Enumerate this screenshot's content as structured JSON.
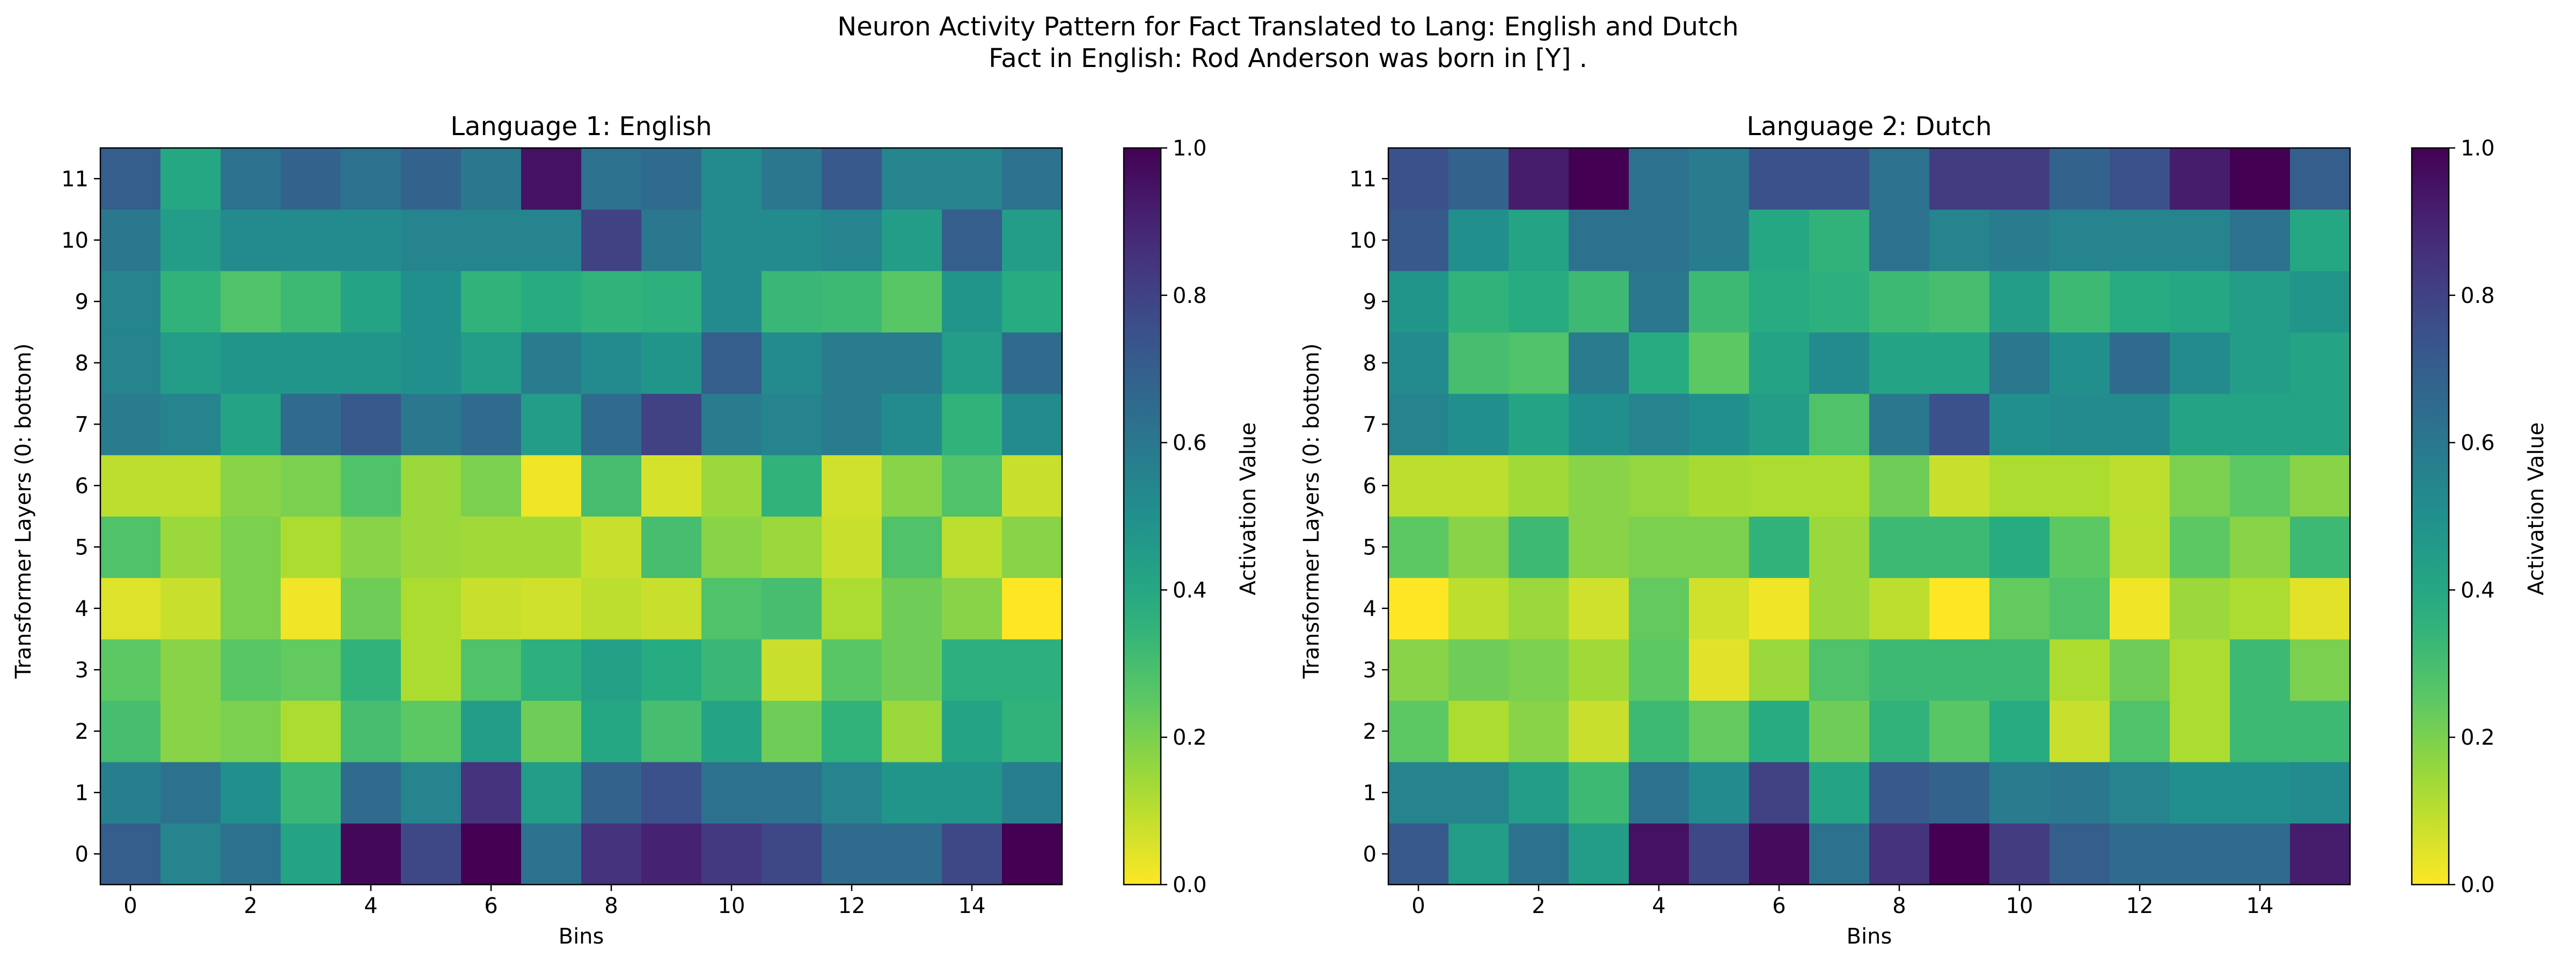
{
  "figure": {
    "title_line1": "Neuron Activity Pattern for Fact Translated to Lang: English and Dutch",
    "title_line2": "Fact in English: Rod Anderson was born in [Y] ."
  },
  "chart_data": [
    {
      "type": "heatmap",
      "title": "Language 1: English",
      "xlabel": "Bins",
      "ylabel": "Transformer Layers (0: bottom)",
      "x_ticks": [
        "0",
        "2",
        "4",
        "6",
        "8",
        "10",
        "12",
        "14"
      ],
      "y_ticks": [
        "0",
        "1",
        "2",
        "3",
        "4",
        "5",
        "6",
        "7",
        "8",
        "9",
        "10",
        "11"
      ],
      "colorbar": {
        "label": "Activation Value",
        "ticks": [
          "0.0",
          "0.2",
          "0.4",
          "0.6",
          "0.8",
          "1.0"
        ],
        "range": [
          0,
          1
        ],
        "colormap": "viridis_r"
      },
      "rows_layer0_to_11": [
        [
          0.7,
          0.55,
          0.62,
          0.42,
          0.98,
          0.78,
          1.0,
          0.62,
          0.85,
          0.9,
          0.83,
          0.78,
          0.65,
          0.65,
          0.78,
          1.0
        ],
        [
          0.57,
          0.62,
          0.5,
          0.33,
          0.65,
          0.55,
          0.85,
          0.45,
          0.68,
          0.75,
          0.62,
          0.62,
          0.55,
          0.48,
          0.48,
          0.57
        ],
        [
          0.3,
          0.18,
          0.2,
          0.12,
          0.3,
          0.25,
          0.45,
          0.22,
          0.4,
          0.3,
          0.42,
          0.22,
          0.35,
          0.15,
          0.42,
          0.35
        ],
        [
          0.25,
          0.18,
          0.26,
          0.24,
          0.35,
          0.12,
          0.28,
          0.36,
          0.43,
          0.38,
          0.33,
          0.08,
          0.26,
          0.22,
          0.36,
          0.36
        ],
        [
          0.05,
          0.08,
          0.2,
          0.02,
          0.22,
          0.12,
          0.08,
          0.07,
          0.1,
          0.08,
          0.28,
          0.3,
          0.12,
          0.22,
          0.18,
          0.0
        ],
        [
          0.28,
          0.15,
          0.2,
          0.12,
          0.18,
          0.15,
          0.14,
          0.14,
          0.08,
          0.3,
          0.18,
          0.15,
          0.08,
          0.28,
          0.1,
          0.18
        ],
        [
          0.1,
          0.1,
          0.18,
          0.2,
          0.28,
          0.15,
          0.2,
          0.02,
          0.3,
          0.06,
          0.15,
          0.35,
          0.07,
          0.18,
          0.28,
          0.08
        ],
        [
          0.58,
          0.55,
          0.42,
          0.65,
          0.72,
          0.6,
          0.65,
          0.45,
          0.65,
          0.8,
          0.58,
          0.55,
          0.58,
          0.52,
          0.35,
          0.52
        ],
        [
          0.55,
          0.45,
          0.48,
          0.48,
          0.48,
          0.5,
          0.45,
          0.58,
          0.52,
          0.48,
          0.7,
          0.52,
          0.58,
          0.58,
          0.45,
          0.65
        ],
        [
          0.55,
          0.35,
          0.28,
          0.32,
          0.42,
          0.5,
          0.35,
          0.38,
          0.35,
          0.36,
          0.52,
          0.33,
          0.32,
          0.26,
          0.48,
          0.38
        ],
        [
          0.6,
          0.45,
          0.52,
          0.52,
          0.52,
          0.55,
          0.55,
          0.55,
          0.8,
          0.6,
          0.52,
          0.52,
          0.55,
          0.45,
          0.7,
          0.45
        ],
        [
          0.7,
          0.4,
          0.62,
          0.68,
          0.62,
          0.68,
          0.6,
          0.95,
          0.62,
          0.65,
          0.52,
          0.6,
          0.72,
          0.55,
          0.55,
          0.62
        ]
      ]
    },
    {
      "type": "heatmap",
      "title": "Language 2: Dutch",
      "xlabel": "Bins",
      "ylabel": "Transformer Layers (0: bottom)",
      "x_ticks": [
        "0",
        "2",
        "4",
        "6",
        "8",
        "10",
        "12",
        "14"
      ],
      "y_ticks": [
        "0",
        "1",
        "2",
        "3",
        "4",
        "5",
        "6",
        "7",
        "8",
        "9",
        "10",
        "11"
      ],
      "colorbar": {
        "label": "Activation Value",
        "ticks": [
          "0.0",
          "0.2",
          "0.4",
          "0.6",
          "0.8",
          "1.0"
        ],
        "range": [
          0,
          1
        ],
        "colormap": "viridis_r"
      },
      "rows_layer0_to_11": [
        [
          0.72,
          0.45,
          0.62,
          0.45,
          0.95,
          0.78,
          0.97,
          0.62,
          0.85,
          1.0,
          0.82,
          0.7,
          0.65,
          0.65,
          0.65,
          0.92
        ],
        [
          0.55,
          0.55,
          0.45,
          0.32,
          0.62,
          0.52,
          0.8,
          0.42,
          0.72,
          0.68,
          0.58,
          0.6,
          0.55,
          0.5,
          0.5,
          0.52
        ],
        [
          0.25,
          0.12,
          0.18,
          0.08,
          0.32,
          0.24,
          0.38,
          0.22,
          0.35,
          0.26,
          0.38,
          0.08,
          0.28,
          0.12,
          0.32,
          0.32
        ],
        [
          0.18,
          0.22,
          0.2,
          0.14,
          0.25,
          0.04,
          0.15,
          0.28,
          0.32,
          0.32,
          0.32,
          0.12,
          0.22,
          0.12,
          0.32,
          0.2
        ],
        [
          0.0,
          0.1,
          0.15,
          0.07,
          0.24,
          0.07,
          0.02,
          0.15,
          0.1,
          0.0,
          0.24,
          0.28,
          0.02,
          0.15,
          0.12,
          0.04
        ],
        [
          0.25,
          0.18,
          0.32,
          0.18,
          0.2,
          0.2,
          0.35,
          0.15,
          0.32,
          0.32,
          0.38,
          0.25,
          0.1,
          0.25,
          0.18,
          0.32
        ],
        [
          0.1,
          0.1,
          0.14,
          0.18,
          0.16,
          0.13,
          0.12,
          0.12,
          0.22,
          0.08,
          0.12,
          0.12,
          0.1,
          0.2,
          0.25,
          0.18
        ],
        [
          0.55,
          0.5,
          0.42,
          0.5,
          0.55,
          0.5,
          0.45,
          0.28,
          0.6,
          0.75,
          0.5,
          0.52,
          0.52,
          0.42,
          0.42,
          0.42
        ],
        [
          0.52,
          0.3,
          0.28,
          0.58,
          0.38,
          0.25,
          0.42,
          0.52,
          0.42,
          0.42,
          0.6,
          0.5,
          0.65,
          0.52,
          0.45,
          0.42
        ],
        [
          0.48,
          0.35,
          0.38,
          0.32,
          0.6,
          0.32,
          0.38,
          0.36,
          0.32,
          0.3,
          0.45,
          0.32,
          0.38,
          0.4,
          0.45,
          0.48
        ],
        [
          0.72,
          0.5,
          0.42,
          0.62,
          0.62,
          0.58,
          0.4,
          0.35,
          0.62,
          0.55,
          0.58,
          0.55,
          0.55,
          0.55,
          0.62,
          0.4
        ],
        [
          0.75,
          0.68,
          0.92,
          1.0,
          0.62,
          0.58,
          0.75,
          0.75,
          0.62,
          0.82,
          0.82,
          0.68,
          0.75,
          0.92,
          1.0,
          0.7
        ]
      ]
    }
  ]
}
